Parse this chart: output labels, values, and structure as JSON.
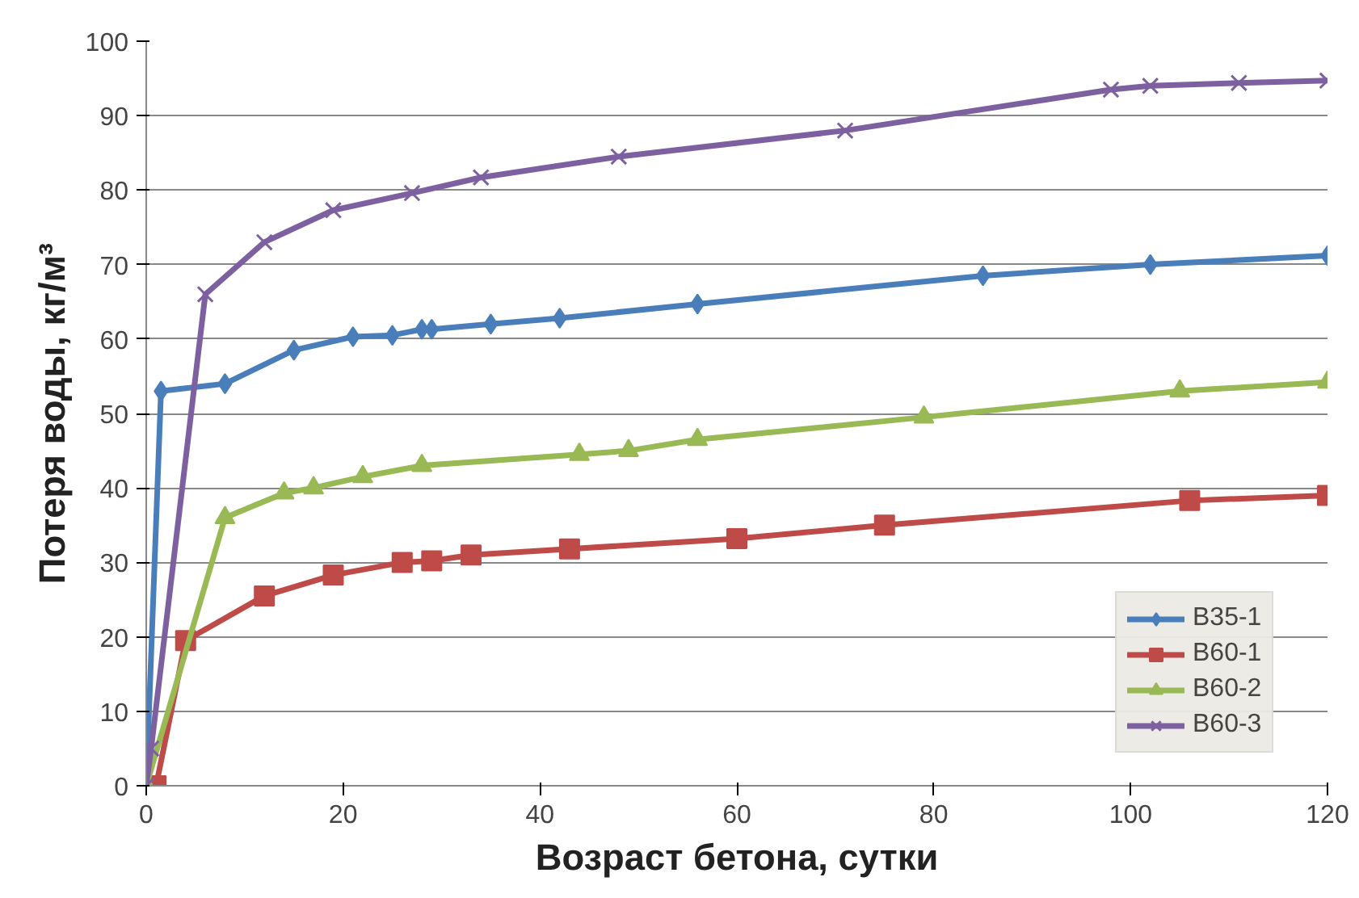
{
  "chart_data": {
    "type": "line",
    "xlabel": "Возраст бетона, сутки",
    "ylabel": "Потеря воды, кг/м³",
    "xlim": [
      0,
      120
    ],
    "xticks": [
      0,
      20,
      40,
      60,
      80,
      100,
      120
    ],
    "ylim": [
      0,
      100
    ],
    "yticks": [
      0,
      10,
      20,
      30,
      40,
      50,
      60,
      70,
      80,
      90,
      100
    ],
    "grid": "y",
    "legend": "right",
    "line_style": "solid",
    "series": [
      {
        "name": "B35-1",
        "color": "#4a7ebb",
        "marker": "diamond",
        "x": [
          0,
          1.5,
          8,
          15,
          21,
          25,
          28,
          29,
          35,
          42,
          56,
          85,
          102,
          120
        ],
        "values": [
          0,
          53,
          54,
          58.5,
          60.3,
          60.5,
          61.3,
          61.3,
          62,
          62.8,
          64.7,
          68.5,
          70,
          71.2
        ]
      },
      {
        "name": "B60-1",
        "color": "#be4b48",
        "marker": "square",
        "x": [
          0,
          1,
          4,
          12,
          19,
          26,
          29,
          33,
          43,
          60,
          75,
          106,
          120
        ],
        "values": [
          0,
          0,
          19.5,
          25.5,
          28.3,
          30,
          30.2,
          31,
          31.8,
          33.2,
          35,
          38.3,
          39
        ]
      },
      {
        "name": "B60-2",
        "color": "#98b954",
        "marker": "triangle",
        "x": [
          0,
          8,
          14,
          17,
          22,
          28,
          44,
          49,
          56,
          79,
          105,
          120
        ],
        "values": [
          0,
          36,
          39.3,
          40,
          41.5,
          43,
          44.5,
          45,
          46.5,
          49.5,
          53,
          54.2
        ]
      },
      {
        "name": "B60-3",
        "color": "#7d60a0",
        "marker": "cross",
        "x": [
          0,
          0.5,
          6,
          12,
          19,
          27,
          34,
          48,
          71,
          98,
          102,
          111,
          120
        ],
        "values": [
          0,
          5,
          66,
          73,
          77.3,
          79.6,
          81.7,
          84.5,
          88,
          93.5,
          94,
          94.4,
          94.7
        ]
      }
    ]
  }
}
